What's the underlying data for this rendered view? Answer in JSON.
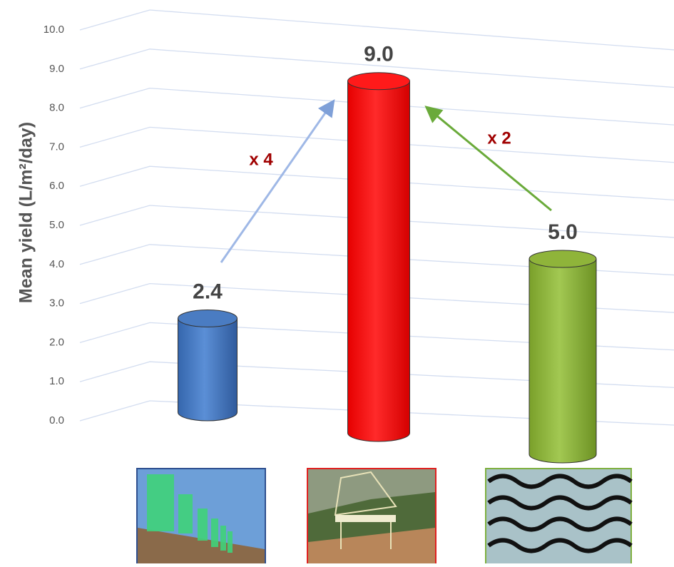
{
  "chart_data": {
    "type": "cylinder-bar",
    "y_label": "Mean yield (L/m²/day)",
    "categories": [
      null,
      null,
      null
    ],
    "values": [
      2.4,
      9.0,
      5.0
    ],
    "value_labels": [
      "2.4",
      "9.0",
      "5.0"
    ],
    "colors": [
      "#4a7cc2",
      "#ff1a1a",
      "#8fb43a"
    ],
    "ylim": [
      0,
      10
    ],
    "yticks": [
      {
        "value": 0,
        "label": "0.0"
      },
      {
        "value": 1,
        "label": "1.0"
      },
      {
        "value": 2,
        "label": "2.0"
      },
      {
        "value": 3,
        "label": "3.0"
      },
      {
        "value": 4,
        "label": "4.0"
      },
      {
        "value": 5,
        "label": "5.0"
      },
      {
        "value": 6,
        "label": "6.0"
      },
      {
        "value": 7,
        "label": "7.0"
      },
      {
        "value": 8,
        "label": "8.0"
      },
      {
        "value": 9,
        "label": "9.0"
      },
      {
        "value": 10,
        "label": "10.0"
      }
    ],
    "grid": true,
    "annotations": [
      "x 4",
      "x 2"
    ]
  }
}
